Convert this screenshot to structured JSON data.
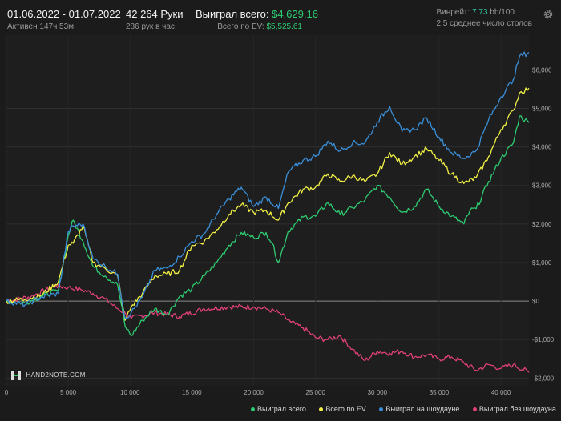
{
  "stats": {
    "period": "01.06.2022 - 01.07.2022",
    "active": "Активен 147ч 53м",
    "hands": "42 264 Руки",
    "hands_per_hour": "286 рук в час",
    "won_label": "Выиграл всего:",
    "won_value": "$4,629.16",
    "ev_label": "Всего по EV:",
    "ev_value": "$5,525.61",
    "winrate_label": "Винрейт:",
    "winrate_value": "7.73",
    "winrate_suffix": "bb/100",
    "tables": "2.5 среднее число столов"
  },
  "logo": "HAND2NOTE.COM",
  "colors": {
    "won": "#2ecc71",
    "ev": "#f1f045",
    "showdown": "#3a8fd9",
    "nonshowdown": "#e0407a"
  },
  "chart_data": {
    "type": "line",
    "xlim": [
      0,
      42264
    ],
    "ylim": [
      -2200,
      6900
    ],
    "x_ticks": [
      0,
      5000,
      10000,
      15000,
      20000,
      25000,
      30000,
      35000,
      40000
    ],
    "x_tick_labels": [
      "0",
      "5 000",
      "10 000",
      "15 000",
      "20 000",
      "25 000",
      "30 000",
      "35 000",
      "40 000"
    ],
    "y_ticks": [
      6000,
      5000,
      4000,
      3000,
      2000,
      1000,
      0,
      -1000,
      -2000
    ],
    "y_tick_labels": [
      "$6,000",
      "$5,000",
      "$4,000",
      "$3,000",
      "$2,000",
      "$1,000",
      "$0",
      "-$1,000",
      "-$2,000"
    ],
    "grid": true,
    "legend_position": "bottom-right",
    "series": [
      {
        "name": "Выиграл всего",
        "color": "#2ecc71",
        "points": [
          [
            0,
            0
          ],
          [
            1500,
            -50
          ],
          [
            2800,
            120
          ],
          [
            4200,
            280
          ],
          [
            5000,
            1700
          ],
          [
            5400,
            2100
          ],
          [
            6200,
            1550
          ],
          [
            7000,
            900
          ],
          [
            8000,
            650
          ],
          [
            9000,
            420
          ],
          [
            9600,
            -650
          ],
          [
            10100,
            -900
          ],
          [
            11000,
            -500
          ],
          [
            12000,
            -200
          ],
          [
            13000,
            -350
          ],
          [
            14000,
            120
          ],
          [
            15000,
            320
          ],
          [
            16000,
            650
          ],
          [
            17000,
            1000
          ],
          [
            18000,
            1450
          ],
          [
            19000,
            1780
          ],
          [
            20000,
            1650
          ],
          [
            21000,
            1780
          ],
          [
            21500,
            1500
          ],
          [
            22000,
            1000
          ],
          [
            22800,
            1820
          ],
          [
            24000,
            2180
          ],
          [
            25000,
            2200
          ],
          [
            26000,
            2550
          ],
          [
            27000,
            2250
          ],
          [
            28000,
            2420
          ],
          [
            29000,
            2620
          ],
          [
            30000,
            3000
          ],
          [
            31000,
            2700
          ],
          [
            32000,
            2300
          ],
          [
            33000,
            2450
          ],
          [
            34000,
            2900
          ],
          [
            35000,
            2450
          ],
          [
            36000,
            2200
          ],
          [
            37000,
            2000
          ],
          [
            37500,
            2350
          ],
          [
            38000,
            2400
          ],
          [
            39000,
            3100
          ],
          [
            40000,
            3700
          ],
          [
            41000,
            4100
          ],
          [
            41500,
            4800
          ],
          [
            42264,
            4629
          ]
        ]
      },
      {
        "name": "Всего по EV",
        "color": "#f1f045",
        "points": [
          [
            0,
            0
          ],
          [
            1500,
            50
          ],
          [
            2800,
            150
          ],
          [
            4200,
            500
          ],
          [
            5000,
            1450
          ],
          [
            5400,
            1500
          ],
          [
            6200,
            1950
          ],
          [
            7000,
            1000
          ],
          [
            8000,
            850
          ],
          [
            9000,
            650
          ],
          [
            9600,
            -500
          ],
          [
            10100,
            -150
          ],
          [
            11000,
            200
          ],
          [
            12000,
            650
          ],
          [
            13000,
            700
          ],
          [
            14000,
            800
          ],
          [
            15000,
            1450
          ],
          [
            16000,
            1550
          ],
          [
            17000,
            1850
          ],
          [
            18000,
            2250
          ],
          [
            19000,
            2500
          ],
          [
            20000,
            2300
          ],
          [
            21000,
            2350
          ],
          [
            22000,
            2100
          ],
          [
            22800,
            2550
          ],
          [
            24000,
            2900
          ],
          [
            25000,
            2950
          ],
          [
            26000,
            3300
          ],
          [
            27000,
            3100
          ],
          [
            28000,
            3250
          ],
          [
            29000,
            3100
          ],
          [
            30000,
            3300
          ],
          [
            31000,
            3850
          ],
          [
            32000,
            3550
          ],
          [
            33000,
            3750
          ],
          [
            34000,
            3950
          ],
          [
            35000,
            3650
          ],
          [
            36000,
            3300
          ],
          [
            37000,
            3050
          ],
          [
            38000,
            3200
          ],
          [
            39000,
            3750
          ],
          [
            40000,
            4450
          ],
          [
            41000,
            4950
          ],
          [
            41500,
            5400
          ],
          [
            42264,
            5525
          ]
        ]
      },
      {
        "name": "Выиграл на шоудауне",
        "color": "#3a8fd9",
        "points": [
          [
            0,
            0
          ],
          [
            1500,
            -100
          ],
          [
            2800,
            100
          ],
          [
            4200,
            200
          ],
          [
            5000,
            1800
          ],
          [
            5400,
            1950
          ],
          [
            6200,
            2000
          ],
          [
            7000,
            1100
          ],
          [
            8000,
            900
          ],
          [
            9000,
            700
          ],
          [
            9600,
            -450
          ],
          [
            10100,
            -300
          ],
          [
            11000,
            100
          ],
          [
            12000,
            800
          ],
          [
            13000,
            850
          ],
          [
            14000,
            1150
          ],
          [
            15000,
            1550
          ],
          [
            16000,
            1750
          ],
          [
            17000,
            2250
          ],
          [
            18000,
            2650
          ],
          [
            19000,
            2950
          ],
          [
            20000,
            2450
          ],
          [
            21000,
            2700
          ],
          [
            22000,
            2400
          ],
          [
            22800,
            3350
          ],
          [
            24000,
            3650
          ],
          [
            25000,
            3750
          ],
          [
            26000,
            4150
          ],
          [
            27000,
            3900
          ],
          [
            28000,
            4100
          ],
          [
            29000,
            4100
          ],
          [
            30000,
            4650
          ],
          [
            31000,
            5050
          ],
          [
            32000,
            4400
          ],
          [
            33000,
            4450
          ],
          [
            34000,
            4750
          ],
          [
            35000,
            4250
          ],
          [
            36000,
            3850
          ],
          [
            37000,
            3700
          ],
          [
            38000,
            3900
          ],
          [
            39000,
            4700
          ],
          [
            40000,
            5300
          ],
          [
            41000,
            5750
          ],
          [
            41500,
            6350
          ],
          [
            42264,
            6450
          ]
        ]
      },
      {
        "name": "Выиграл без шоудауна",
        "color": "#e0407a",
        "points": [
          [
            0,
            0
          ],
          [
            2000,
            120
          ],
          [
            4000,
            400
          ],
          [
            5000,
            350
          ],
          [
            6000,
            300
          ],
          [
            7000,
            200
          ],
          [
            8000,
            50
          ],
          [
            9000,
            -200
          ],
          [
            9600,
            -300
          ],
          [
            10100,
            -450
          ],
          [
            12000,
            -300
          ],
          [
            14000,
            -400
          ],
          [
            16000,
            -200
          ],
          [
            18000,
            -150
          ],
          [
            20000,
            -150
          ],
          [
            21000,
            -200
          ],
          [
            22000,
            -300
          ],
          [
            23000,
            -550
          ],
          [
            24000,
            -700
          ],
          [
            25000,
            -950
          ],
          [
            26000,
            -1000
          ],
          [
            27000,
            -900
          ],
          [
            28000,
            -1250
          ],
          [
            29000,
            -1550
          ],
          [
            30000,
            -1300
          ],
          [
            31000,
            -1350
          ],
          [
            32000,
            -1300
          ],
          [
            33000,
            -1450
          ],
          [
            34000,
            -1400
          ],
          [
            35000,
            -1500
          ],
          [
            36000,
            -1450
          ],
          [
            37000,
            -1600
          ],
          [
            38000,
            -1800
          ],
          [
            39000,
            -1650
          ],
          [
            40000,
            -1750
          ],
          [
            41000,
            -1650
          ],
          [
            42264,
            -1850
          ]
        ]
      }
    ]
  }
}
